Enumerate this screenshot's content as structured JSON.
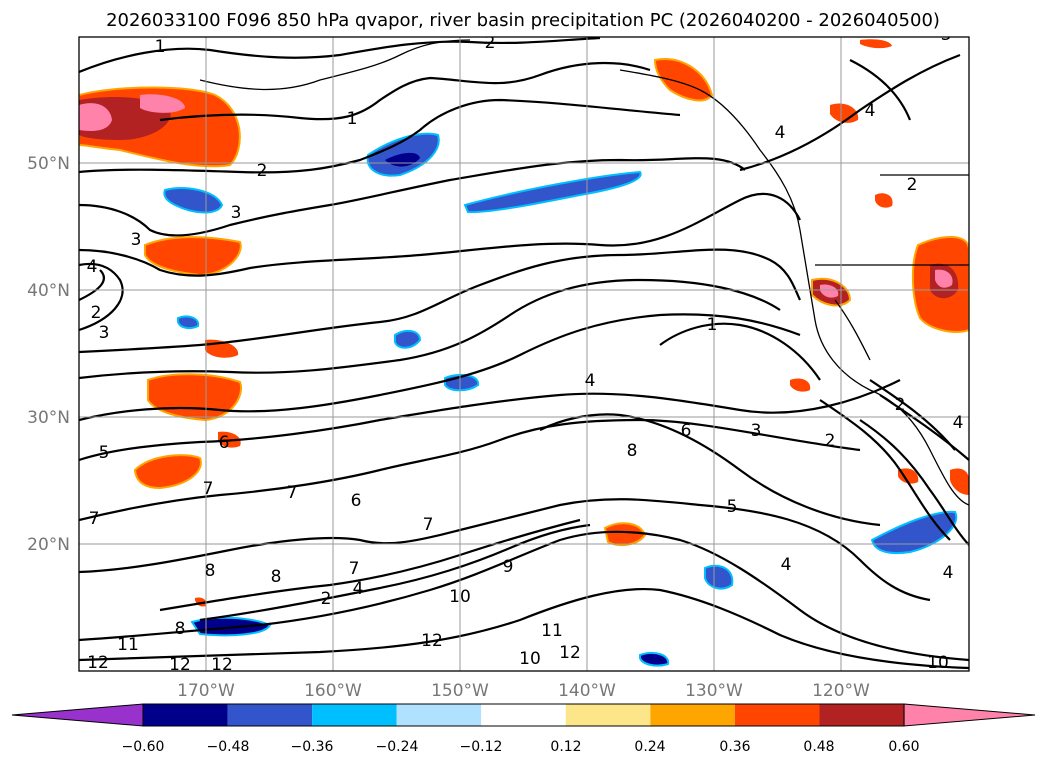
{
  "title": "2026033100 F096 850 hPa qvapor, river basin precipitation PC (2026040200 - 2026040500)",
  "axes": {
    "lon_labels": [
      "170°W",
      "160°W",
      "150°W",
      "140°W",
      "130°W",
      "120°W"
    ],
    "lat_labels": [
      "50°N",
      "40°N",
      "30°N",
      "20°N"
    ]
  },
  "colorbar": {
    "tick_labels": [
      "−0.60",
      "−0.48",
      "−0.36",
      "−0.24",
      "−0.12",
      "0.12",
      "0.24",
      "0.36",
      "0.48",
      "0.60"
    ],
    "colors": [
      "#9932cc",
      "#00008b",
      "#3355cc",
      "#00bfff",
      "#b0e2ff",
      "#ffffff",
      "#fde68a",
      "#ffa500",
      "#ff4500",
      "#b22222",
      "#ff82ab"
    ]
  },
  "contour_labels": [
    "1",
    "2",
    "1",
    "2",
    "3",
    "3",
    "4",
    "2",
    "3",
    "4",
    "3",
    "1",
    "4",
    "6",
    "3",
    "2",
    "5",
    "6",
    "7",
    "7",
    "8",
    "7",
    "6",
    "8",
    "8",
    "7",
    "5",
    "4",
    "4",
    "2",
    "7",
    "4",
    "9",
    "10",
    "8",
    "11",
    "12",
    "12",
    "12",
    "12",
    "10",
    "11",
    "12",
    "4",
    "2",
    "10",
    "4",
    "2"
  ],
  "map_icons": {
    "land_name": "coastline-shapes",
    "contour_name": "qvapor-contour-lines",
    "shading_name": "precipitation-pc-shading"
  }
}
